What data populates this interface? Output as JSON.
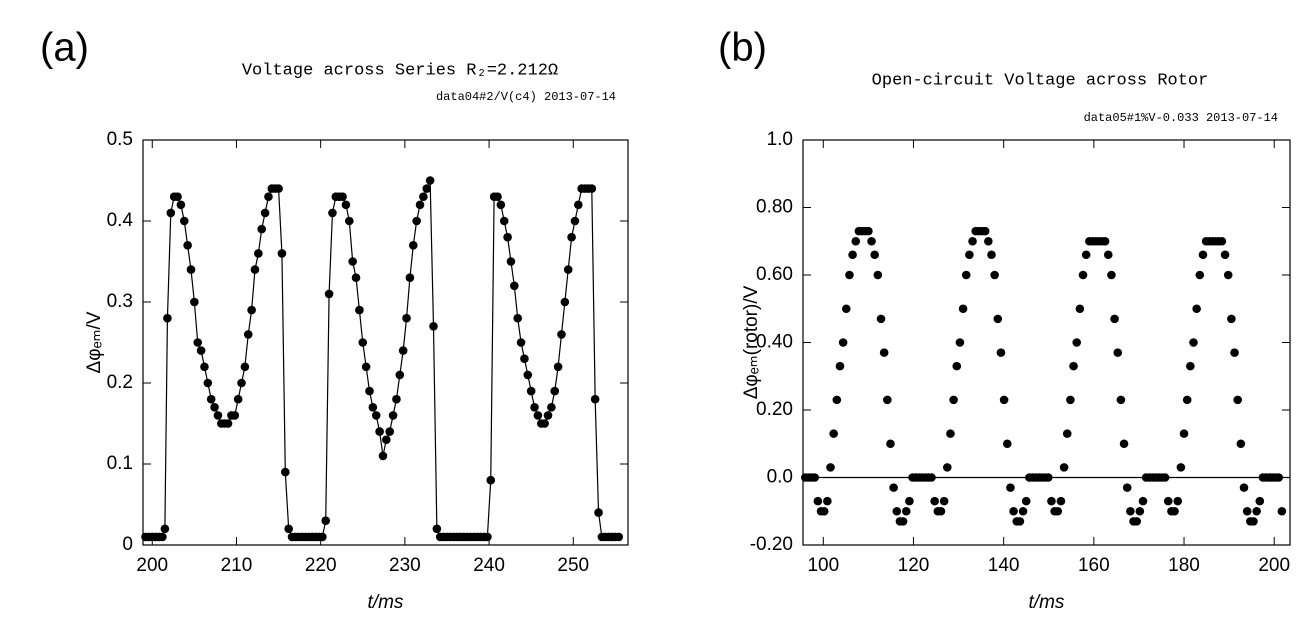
{
  "chart_data": [
    {
      "type": "line",
      "panel_label": "(a)",
      "title": "Voltage across Series R₂=2.212Ω",
      "subtitle": "data04#2/V(c4) 2013-07-14",
      "x_label": "t/ms",
      "y_label": "Δφₑₘ/V",
      "color": "#000000",
      "markers": true,
      "xlim": [
        198.9,
        256.5
      ],
      "ylim": [
        0,
        0.5
      ],
      "xticks": [
        200,
        210,
        220,
        230,
        240,
        250
      ],
      "yticks": [
        0,
        0.1,
        0.2,
        0.3,
        0.4,
        0.5
      ],
      "x": [
        199.2,
        199.6,
        200.0,
        200.4,
        200.8,
        201.2,
        201.5,
        201.8,
        202.2,
        202.6,
        203.0,
        203.4,
        203.8,
        204.2,
        204.6,
        205.0,
        205.4,
        205.8,
        206.2,
        206.6,
        207.0,
        207.4,
        207.8,
        208.2,
        208.6,
        209.0,
        209.4,
        209.8,
        210.2,
        210.6,
        211.0,
        211.4,
        211.8,
        212.2,
        212.6,
        213.0,
        213.4,
        213.8,
        214.2,
        214.6,
        215.0,
        215.4,
        215.8,
        216.2,
        216.6,
        217.0,
        217.4,
        217.8,
        218.2,
        218.6,
        219.0,
        219.4,
        219.8,
        220.2,
        220.6,
        221.0,
        221.4,
        221.8,
        222.2,
        222.6,
        223.0,
        223.4,
        223.8,
        224.2,
        224.6,
        225.0,
        225.4,
        225.8,
        226.2,
        226.6,
        227.0,
        227.4,
        227.8,
        228.2,
        228.6,
        229.0,
        229.4,
        229.8,
        230.2,
        230.6,
        231.0,
        231.4,
        231.8,
        232.2,
        232.6,
        233.0,
        233.4,
        233.8,
        234.2,
        234.6,
        235.0,
        235.4,
        235.8,
        236.2,
        236.6,
        237.0,
        237.4,
        237.8,
        238.2,
        238.6,
        239.0,
        239.4,
        239.8,
        240.2,
        240.6,
        241.0,
        241.4,
        241.8,
        242.2,
        242.6,
        243.0,
        243.4,
        243.8,
        244.2,
        244.6,
        245.0,
        245.4,
        245.8,
        246.2,
        246.6,
        247.0,
        247.4,
        247.8,
        248.2,
        248.6,
        249.0,
        249.4,
        249.8,
        250.2,
        250.6,
        251.0,
        251.4,
        251.8,
        252.2,
        252.6,
        253.0,
        253.4,
        253.8,
        254.2,
        254.6,
        255.0,
        255.4
      ],
      "values": [
        0.01,
        0.01,
        0.01,
        0.01,
        0.01,
        0.01,
        0.02,
        0.28,
        0.41,
        0.43,
        0.43,
        0.42,
        0.4,
        0.37,
        0.34,
        0.3,
        0.25,
        0.24,
        0.22,
        0.2,
        0.18,
        0.17,
        0.16,
        0.15,
        0.15,
        0.15,
        0.16,
        0.16,
        0.18,
        0.2,
        0.22,
        0.26,
        0.29,
        0.34,
        0.36,
        0.39,
        0.41,
        0.43,
        0.44,
        0.44,
        0.44,
        0.36,
        0.09,
        0.02,
        0.01,
        0.01,
        0.01,
        0.01,
        0.01,
        0.01,
        0.01,
        0.01,
        0.01,
        0.01,
        0.03,
        0.31,
        0.41,
        0.43,
        0.43,
        0.43,
        0.42,
        0.4,
        0.35,
        0.33,
        0.29,
        0.25,
        0.22,
        0.19,
        0.17,
        0.16,
        0.14,
        0.11,
        0.13,
        0.14,
        0.16,
        0.18,
        0.21,
        0.24,
        0.28,
        0.33,
        0.37,
        0.4,
        0.42,
        0.43,
        0.44,
        0.45,
        0.27,
        0.02,
        0.01,
        0.01,
        0.01,
        0.01,
        0.01,
        0.01,
        0.01,
        0.01,
        0.01,
        0.01,
        0.01,
        0.01,
        0.01,
        0.01,
        0.01,
        0.08,
        0.43,
        0.43,
        0.42,
        0.4,
        0.38,
        0.35,
        0.32,
        0.28,
        0.25,
        0.23,
        0.21,
        0.19,
        0.17,
        0.16,
        0.15,
        0.15,
        0.16,
        0.17,
        0.19,
        0.22,
        0.26,
        0.3,
        0.34,
        0.38,
        0.4,
        0.42,
        0.44,
        0.44,
        0.44,
        0.44,
        0.18,
        0.04,
        0.01,
        0.01,
        0.01,
        0.01,
        0.01,
        0.01
      ]
    },
    {
      "type": "scatter",
      "panel_label": "(b)",
      "title": "Open-circuit Voltage across Rotor",
      "subtitle": "data05#1%V-0.033 2013-07-14",
      "x_label": "t/ms",
      "y_label": "Δφₑₘ(rotor)/V",
      "color": "#000000",
      "zero_line": true,
      "xlim": [
        95.5,
        203.5
      ],
      "ylim": [
        -0.2,
        1.0
      ],
      "xticks": [
        100,
        120,
        140,
        160,
        180,
        200
      ],
      "yticks": [
        {
          "value": -0.2,
          "label": "-0.20"
        },
        {
          "value": 0,
          "label": "0.0"
        },
        {
          "value": 0.2,
          "label": "0.20"
        },
        {
          "value": 0.4,
          "label": "0.40"
        },
        {
          "value": 0.6,
          "label": "0.60"
        },
        {
          "value": 0.8,
          "label": "0.80"
        },
        {
          "value": 1,
          "label": "1.0"
        }
      ],
      "x": [
        96.0,
        96.7,
        97.4,
        98.1,
        98.8,
        99.5,
        100.2,
        100.9,
        101.6,
        102.3,
        103.0,
        103.7,
        104.4,
        105.1,
        105.8,
        106.5,
        107.2,
        107.9,
        108.6,
        109.3,
        110.0,
        110.7,
        111.4,
        112.1,
        112.8,
        113.5,
        114.2,
        114.9,
        115.6,
        116.3,
        117.0,
        117.7,
        118.4,
        119.1,
        119.8,
        120.5,
        121.2,
        121.9,
        122.6,
        123.3,
        124.0,
        124.7,
        125.4,
        126.1,
        126.8,
        127.5,
        128.2,
        128.9,
        129.6,
        130.3,
        131.0,
        131.7,
        132.4,
        133.1,
        133.8,
        134.5,
        135.2,
        135.9,
        136.6,
        137.3,
        138.0,
        138.7,
        139.4,
        140.1,
        140.8,
        141.5,
        142.2,
        142.9,
        143.6,
        144.3,
        145.0,
        145.7,
        146.4,
        147.1,
        147.8,
        148.5,
        149.2,
        149.9,
        150.6,
        151.3,
        152.0,
        152.7,
        153.4,
        154.1,
        154.8,
        155.5,
        156.2,
        156.9,
        157.6,
        158.3,
        159.0,
        159.7,
        160.4,
        161.1,
        161.8,
        162.5,
        163.2,
        163.9,
        164.6,
        165.3,
        166.0,
        166.7,
        167.4,
        168.1,
        168.8,
        169.5,
        170.2,
        170.9,
        171.6,
        172.3,
        173.0,
        173.7,
        174.4,
        175.1,
        175.8,
        176.5,
        177.2,
        177.9,
        178.6,
        179.3,
        180.0,
        180.7,
        181.4,
        182.1,
        182.8,
        183.5,
        184.2,
        184.9,
        185.6,
        186.3,
        187.0,
        187.7,
        188.4,
        189.1,
        189.8,
        190.5,
        191.2,
        191.9,
        192.6,
        193.3,
        194.0,
        194.7,
        195.4,
        196.1,
        196.8,
        197.5,
        198.2,
        198.9,
        199.6,
        200.3,
        201.0,
        201.7
      ],
      "values": [
        0,
        0,
        0,
        0,
        -0.07,
        -0.1,
        -0.1,
        -0.07,
        0.03,
        0.13,
        0.23,
        0.33,
        0.4,
        0.5,
        0.6,
        0.66,
        0.7,
        0.73,
        0.73,
        0.73,
        0.73,
        0.7,
        0.66,
        0.6,
        0.47,
        0.37,
        0.23,
        0.1,
        -0.03,
        -0.1,
        -0.13,
        -0.13,
        -0.1,
        -0.07,
        0,
        0,
        0,
        0,
        0,
        0,
        0,
        -0.07,
        -0.1,
        -0.1,
        -0.07,
        0.03,
        0.13,
        0.23,
        0.33,
        0.4,
        0.5,
        0.6,
        0.66,
        0.7,
        0.73,
        0.73,
        0.73,
        0.73,
        0.7,
        0.66,
        0.6,
        0.47,
        0.37,
        0.23,
        0.1,
        -0.03,
        -0.1,
        -0.13,
        -0.13,
        -0.1,
        -0.07,
        0,
        0,
        0,
        0,
        0,
        0,
        0,
        -0.07,
        -0.1,
        -0.1,
        -0.07,
        0.03,
        0.13,
        0.23,
        0.33,
        0.4,
        0.5,
        0.6,
        0.66,
        0.7,
        0.7,
        0.7,
        0.7,
        0.7,
        0.7,
        0.66,
        0.6,
        0.47,
        0.37,
        0.23,
        0.1,
        -0.03,
        -0.1,
        -0.13,
        -0.13,
        -0.1,
        -0.07,
        0,
        0,
        0,
        0,
        0,
        0,
        0,
        -0.07,
        -0.1,
        -0.1,
        -0.07,
        0.03,
        0.13,
        0.23,
        0.33,
        0.4,
        0.5,
        0.6,
        0.66,
        0.7,
        0.7,
        0.7,
        0.7,
        0.7,
        0.7,
        0.66,
        0.6,
        0.47,
        0.37,
        0.23,
        0.1,
        -0.03,
        -0.1,
        -0.13,
        -0.13,
        -0.1,
        -0.07,
        0,
        0,
        0,
        0,
        0,
        0,
        -0.1
      ]
    }
  ]
}
